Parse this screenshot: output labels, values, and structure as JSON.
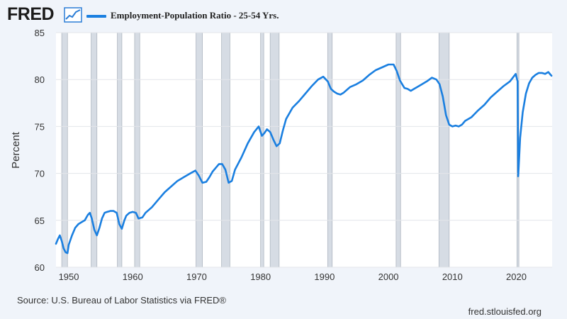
{
  "header": {
    "logo_text": "FRED",
    "logo_icon": "line-chart-icon"
  },
  "footer": {
    "source": "Source: U.S. Bureau of Labor Statistics via FRED®",
    "site": "fred.stlouisfed.org"
  },
  "colors": {
    "series": "#1a7fe0",
    "recession": "#d6dce4",
    "background": "#f0f4fa",
    "plot": "#ffffff"
  },
  "chart_data": {
    "type": "line",
    "title": "",
    "xlabel": "",
    "ylabel": "Percent",
    "xlim": [
      1948.0,
      2025.6
    ],
    "ylim": [
      60,
      85
    ],
    "x_ticks": [
      1950,
      1960,
      1970,
      1980,
      1990,
      2000,
      2010,
      2020
    ],
    "y_ticks": [
      60,
      65,
      70,
      75,
      80,
      85
    ],
    "grid": "horizontal",
    "legend_position": "top-left",
    "recessions": [
      [
        1948.9,
        1949.8
      ],
      [
        1953.5,
        1954.4
      ],
      [
        1957.6,
        1958.3
      ],
      [
        1960.3,
        1961.1
      ],
      [
        1969.9,
        1970.9
      ],
      [
        1973.9,
        1975.2
      ],
      [
        1980.0,
        1980.5
      ],
      [
        1981.5,
        1982.9
      ],
      [
        1990.5,
        1991.2
      ],
      [
        2001.2,
        2001.9
      ],
      [
        2007.9,
        2009.5
      ],
      [
        2020.1,
        2020.4
      ]
    ],
    "series": [
      {
        "name": "Employment-Population Ratio - 25-54 Yrs.",
        "x": [
          1948.0,
          1948.3,
          1948.6,
          1948.9,
          1949.2,
          1949.5,
          1949.8,
          1950.0,
          1950.5,
          1951.0,
          1951.5,
          1952.0,
          1952.5,
          1953.0,
          1953.3,
          1953.6,
          1954.0,
          1954.4,
          1954.8,
          1955.2,
          1955.6,
          1956.0,
          1956.5,
          1957.0,
          1957.5,
          1957.9,
          1958.3,
          1958.7,
          1959.0,
          1959.5,
          1960.0,
          1960.5,
          1960.9,
          1961.5,
          1962.0,
          1963.0,
          1964.0,
          1965.0,
          1966.0,
          1967.0,
          1968.0,
          1969.0,
          1969.8,
          1970.3,
          1970.9,
          1971.5,
          1972.0,
          1972.5,
          1973.0,
          1973.5,
          1974.0,
          1974.5,
          1975.0,
          1975.5,
          1976.0,
          1977.0,
          1978.0,
          1979.0,
          1979.7,
          1980.2,
          1980.6,
          1981.0,
          1981.5,
          1982.0,
          1982.5,
          1983.0,
          1983.5,
          1984.0,
          1985.0,
          1986.0,
          1987.0,
          1988.0,
          1989.0,
          1989.8,
          1990.5,
          1991.0,
          1991.5,
          1992.0,
          1992.5,
          1993.0,
          1994.0,
          1995.0,
          1996.0,
          1997.0,
          1998.0,
          1999.0,
          2000.0,
          2000.8,
          2001.3,
          2001.8,
          2002.5,
          2003.0,
          2003.5,
          2004.0,
          2005.0,
          2006.0,
          2006.8,
          2007.5,
          2008.0,
          2008.5,
          2009.0,
          2009.5,
          2010.0,
          2010.5,
          2011.0,
          2011.5,
          2012.0,
          2013.0,
          2014.0,
          2015.0,
          2016.0,
          2017.0,
          2018.0,
          2019.0,
          2019.9,
          2020.2,
          2020.3,
          2020.6,
          2021.0,
          2021.5,
          2022.0,
          2022.5,
          2023.0,
          2023.5,
          2024.0,
          2024.5,
          2025.0,
          2025.5
        ],
        "values": [
          62.5,
          63.0,
          63.4,
          62.8,
          62.0,
          61.6,
          61.5,
          62.4,
          63.4,
          64.2,
          64.6,
          64.8,
          65.0,
          65.6,
          65.8,
          65.2,
          64.0,
          63.4,
          64.2,
          65.2,
          65.8,
          65.9,
          66.0,
          66.0,
          65.8,
          64.6,
          64.1,
          65.0,
          65.5,
          65.8,
          65.9,
          65.8,
          65.2,
          65.3,
          65.8,
          66.4,
          67.2,
          68.0,
          68.6,
          69.2,
          69.6,
          70.0,
          70.3,
          69.8,
          69.0,
          69.1,
          69.6,
          70.2,
          70.6,
          71.0,
          71.0,
          70.4,
          69.0,
          69.2,
          70.4,
          71.7,
          73.2,
          74.4,
          75.0,
          74.0,
          74.3,
          74.7,
          74.4,
          73.6,
          72.9,
          73.2,
          74.6,
          75.8,
          77.0,
          77.7,
          78.5,
          79.3,
          80.0,
          80.3,
          79.8,
          79.0,
          78.7,
          78.5,
          78.4,
          78.6,
          79.2,
          79.5,
          79.9,
          80.5,
          81.0,
          81.3,
          81.6,
          81.6,
          80.9,
          79.9,
          79.1,
          79.0,
          78.8,
          79.0,
          79.4,
          79.8,
          80.2,
          80.0,
          79.5,
          78.2,
          76.2,
          75.2,
          75.0,
          75.1,
          75.0,
          75.2,
          75.6,
          76.0,
          76.7,
          77.3,
          78.1,
          78.7,
          79.3,
          79.8,
          80.6,
          79.8,
          69.7,
          73.8,
          76.5,
          78.5,
          79.6,
          80.2,
          80.5,
          80.7,
          80.7,
          80.6,
          80.8,
          80.4
        ]
      }
    ]
  }
}
